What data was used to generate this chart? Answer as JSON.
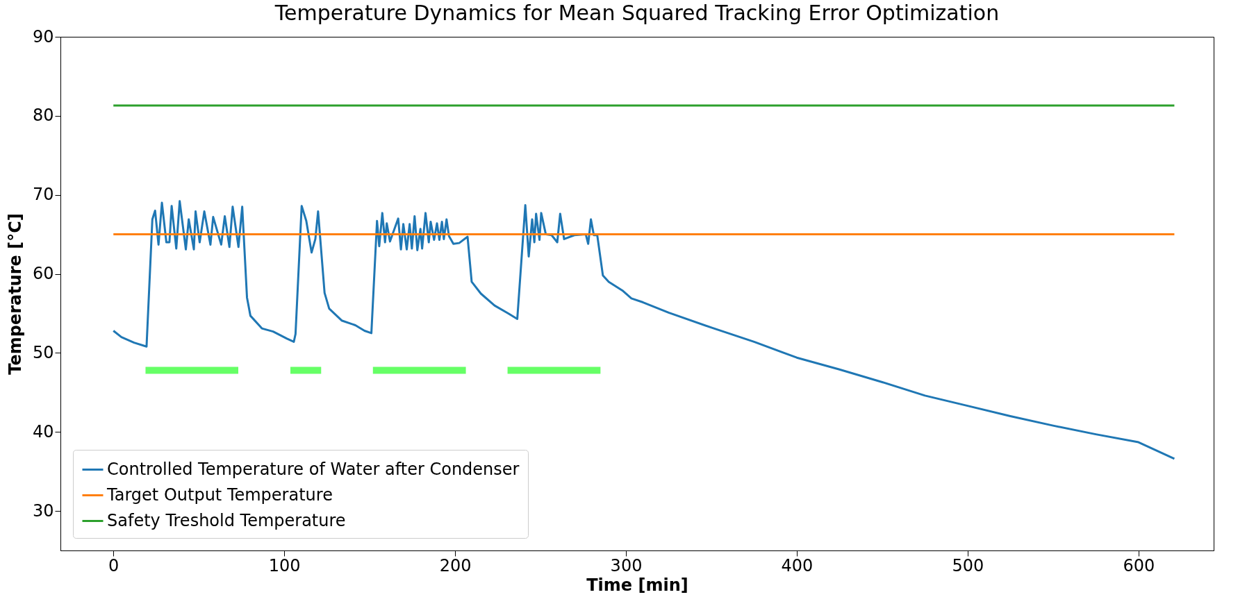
{
  "chart_data": {
    "type": "line",
    "title": "Temperature Dynamics for Mean Squared Tracking Error Optimization",
    "xlabel": "Time [min]",
    "ylabel": "Temperature [°C]",
    "xlim": [
      -31,
      644
    ],
    "ylim": [
      25,
      90
    ],
    "xticks": [
      0,
      100,
      200,
      300,
      400,
      500,
      600
    ],
    "yticks": [
      30,
      40,
      50,
      60,
      70,
      80,
      90
    ],
    "grid": false,
    "legend": "bottom left",
    "line_style": "solid",
    "marker": "none",
    "series": [
      {
        "name": "Controlled Temperature of Water after Condenser",
        "color": "#1f77b4",
        "x": [
          0,
          4.7,
          12.1,
          19.4,
          22.8,
          24.4,
          26.4,
          28.4,
          31.0,
          32.8,
          34.1,
          36.8,
          38.8,
          42.4,
          44.1,
          47.1,
          48.1,
          50.5,
          53.2,
          56.8,
          58.4,
          63.1,
          65.2,
          67.9,
          69.8,
          73.2,
          75.4,
          78.2,
          80.2,
          86.9,
          93.5,
          101.6,
          105.6,
          106.6,
          110.2,
          112.9,
          116.0,
          118.2,
          119.8,
          123.6,
          126.3,
          133.6,
          141.6,
          147.0,
          151.0,
          154.3,
          155.6,
          157.4,
          159.0,
          160.0,
          161.9,
          166.7,
          168.3,
          169.7,
          171.7,
          173.4,
          174.7,
          176.3,
          177.9,
          179.7,
          180.7,
          182.7,
          184.6,
          185.7,
          187.7,
          189.4,
          190.8,
          192.3,
          193.4,
          195.0,
          196.4,
          199.0,
          202.4,
          207.3,
          209.7,
          215.1,
          223.1,
          231.1,
          236.4,
          241.1,
          243.1,
          245.1,
          246.4,
          247.4,
          249.4,
          250.4,
          253.1,
          256.5,
          259.8,
          261.5,
          263.8,
          269.8,
          276.5,
          277.9,
          279.5,
          281.2,
          283.2,
          286.5,
          289.9,
          297.9,
          303.2,
          310,
          325,
          350,
          375,
          400,
          425,
          450,
          475,
          500,
          525,
          550,
          575,
          600,
          621
        ],
        "values": [
          52.8,
          52.0,
          51.3,
          50.8,
          66.9,
          68.0,
          63.7,
          69.0,
          64.0,
          64.0,
          68.6,
          63.2,
          69.2,
          63.1,
          66.9,
          63.1,
          67.9,
          64.0,
          67.9,
          63.7,
          67.2,
          63.7,
          67.3,
          63.4,
          68.5,
          63.4,
          68.5,
          57.0,
          54.7,
          53.1,
          52.7,
          51.8,
          51.4,
          52.4,
          68.6,
          66.7,
          62.7,
          64.4,
          67.9,
          57.6,
          55.6,
          54.1,
          53.5,
          52.8,
          52.5,
          66.7,
          63.5,
          67.7,
          64.0,
          66.4,
          64.1,
          67.0,
          63.1,
          66.3,
          63.1,
          66.3,
          63.2,
          67.3,
          63.0,
          65.7,
          63.2,
          67.7,
          64.0,
          66.6,
          64.3,
          66.4,
          64.3,
          66.6,
          64.4,
          66.9,
          64.8,
          63.8,
          63.9,
          64.7,
          59.0,
          57.5,
          56.0,
          55.0,
          54.3,
          68.7,
          62.2,
          66.9,
          64.0,
          67.6,
          64.3,
          67.7,
          65.0,
          64.9,
          64.0,
          67.6,
          64.4,
          64.9,
          65.0,
          63.8,
          66.9,
          64.9,
          64.9,
          59.8,
          59.0,
          57.9,
          56.9,
          56.4,
          55.1,
          53.2,
          51.4,
          49.4,
          47.9,
          46.3,
          44.6,
          43.3,
          42.0,
          40.8,
          39.7,
          38.7,
          36.6
        ]
      },
      {
        "name": "Target Output Temperature",
        "color": "#ff7f0e",
        "x": [
          0,
          621
        ],
        "values": [
          65,
          65
        ]
      },
      {
        "name": "Safety Treshold Temperature",
        "color": "#2ca02c",
        "x": [
          0,
          621
        ],
        "values": [
          81.3,
          81.3
        ]
      },
      {
        "color": "#66ff66",
        "x": [
          18.8,
          73.1,
          73.2,
          103.6,
          121.6,
          121.7,
          151.9,
          206.3,
          206.4,
          230.7,
          285.1
        ],
        "values": [
          47.8,
          47.8,
          null,
          47.8,
          47.8,
          null,
          47.8,
          47.8,
          null,
          47.8,
          47.8
        ]
      }
    ]
  }
}
